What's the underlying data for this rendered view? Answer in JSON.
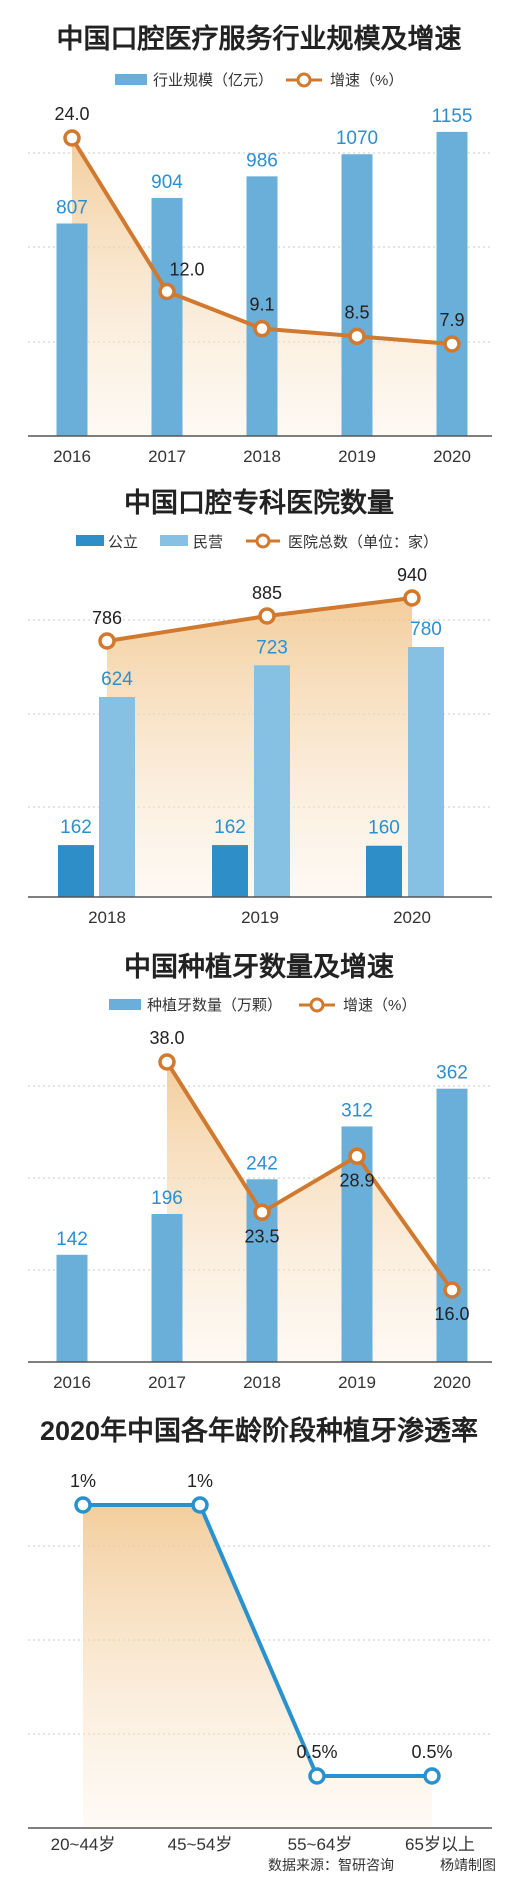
{
  "colors": {
    "bar_blue": "#6aafd9",
    "bar_dark_blue": "#2e8ec7",
    "bar_light_blue": "#86c1e4",
    "line_orange": "#d0792f",
    "line_blue": "#2a91cf",
    "area_fill": "#f6d9b0",
    "title_black": "#222222",
    "label_blue": "#2c8fcf",
    "grid": "#c8c8c8"
  },
  "chart_data": [
    {
      "type": "bar",
      "title": "中国口腔医疗服务行业规模及增速",
      "legend": [
        "行业规模（亿元）",
        "增速（%）"
      ],
      "categories": [
        "2016",
        "2017",
        "2018",
        "2019",
        "2020"
      ],
      "series": [
        {
          "name": "行业规模（亿元）",
          "kind": "bar",
          "values": [
            807,
            904,
            986,
            1070,
            1155
          ]
        },
        {
          "name": "增速（%）",
          "kind": "line",
          "values": [
            24.0,
            12.0,
            9.1,
            8.5,
            7.9
          ]
        }
      ],
      "bar_labels": [
        "807",
        "904",
        "986",
        "1070",
        "1155"
      ],
      "line_labels": [
        "24.0",
        "12.0",
        "9.1",
        "8.5",
        "7.9"
      ],
      "ylim_bar": [
        0,
        1200
      ],
      "ylim_line": [
        0,
        30
      ],
      "grid": true
    },
    {
      "type": "bar",
      "title": "中国口腔专科医院数量",
      "legend": [
        "公立",
        "民营",
        "医院总数（单位：家）"
      ],
      "categories": [
        "2018",
        "2019",
        "2020"
      ],
      "series": [
        {
          "name": "公立",
          "kind": "bar",
          "values": [
            162,
            162,
            160
          ]
        },
        {
          "name": "民营",
          "kind": "bar",
          "values": [
            624,
            723,
            780
          ]
        },
        {
          "name": "医院总数（单位：家）",
          "kind": "line",
          "values": [
            786,
            885,
            940
          ]
        }
      ],
      "bar_labels_public": [
        "162",
        "162",
        "160"
      ],
      "bar_labels_private": [
        "624",
        "723",
        "780"
      ],
      "line_labels": [
        "786",
        "885",
        "940"
      ],
      "ylim": [
        0,
        1000
      ],
      "grid": true
    },
    {
      "type": "bar",
      "title": "中国种植牙数量及增速",
      "legend": [
        "种植牙数量（万颗）",
        "增速（%）"
      ],
      "categories": [
        "2016",
        "2017",
        "2018",
        "2019",
        "2020"
      ],
      "series": [
        {
          "name": "种植牙数量（万颗）",
          "kind": "bar",
          "values": [
            142,
            196,
            242,
            312,
            362
          ]
        },
        {
          "name": "增速（%）",
          "kind": "line",
          "values": [
            null,
            38.0,
            23.5,
            28.9,
            16.0
          ]
        }
      ],
      "bar_labels": [
        "142",
        "196",
        "242",
        "312",
        "362"
      ],
      "line_labels": [
        "38.0",
        "23.5",
        "28.9",
        "16.0"
      ],
      "ylim_bar": [
        0,
        400
      ],
      "ylim_line": [
        0,
        45
      ],
      "grid": true
    },
    {
      "type": "line",
      "title": "2020年中国各年龄阶段种植牙渗透率",
      "categories": [
        "20~44岁",
        "45~54岁",
        "55~64岁",
        "65岁以上"
      ],
      "series": [
        {
          "name": "渗透率",
          "values": [
            1,
            1,
            0.5,
            0.5
          ]
        }
      ],
      "point_labels": [
        "1%",
        "1%",
        "0.5%",
        "0.5%"
      ],
      "ylim": [
        0.4,
        1.15
      ],
      "grid": true
    }
  ],
  "footer": {
    "source": "数据来源：智研咨询",
    "author": "杨靖制图"
  }
}
